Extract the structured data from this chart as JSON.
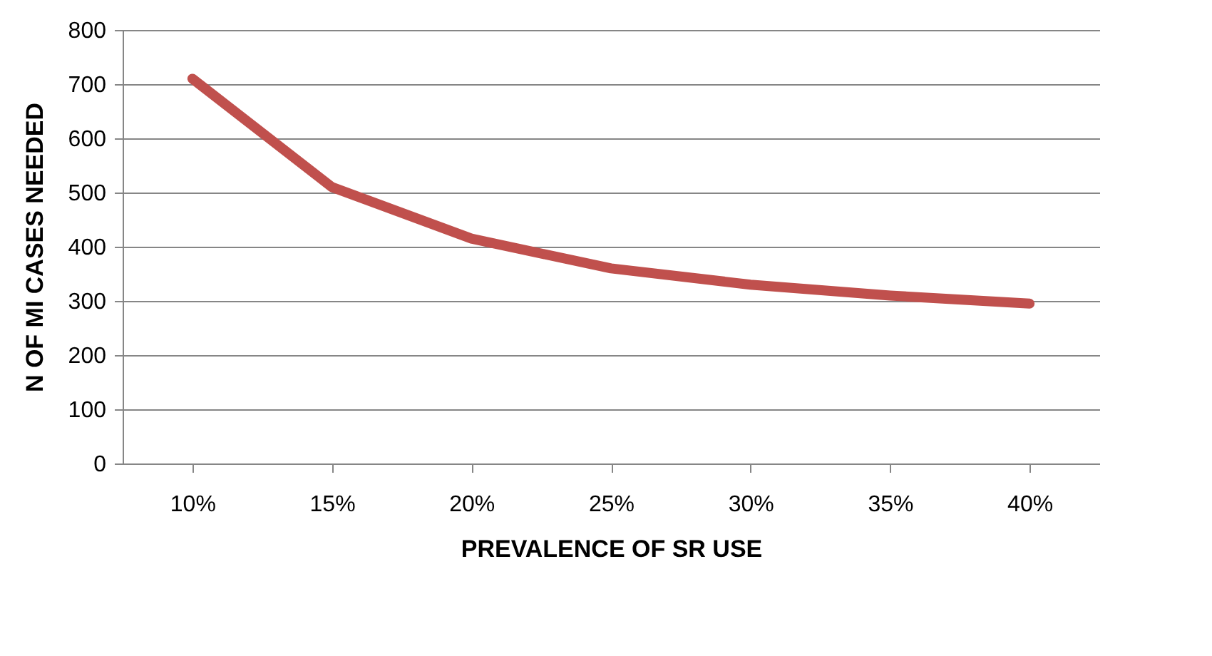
{
  "chart_data": {
    "type": "line",
    "xlabel": "PREVALENCE OF SR USE",
    "ylabel": "N OF MI CASES NEEDED",
    "categories": [
      "10%",
      "15%",
      "20%",
      "25%",
      "30%",
      "35%",
      "40%"
    ],
    "series": [
      {
        "color": "#c0504d",
        "values": [
          710,
          510,
          415,
          360,
          330,
          310,
          295
        ]
      }
    ],
    "ylim": [
      0,
      800
    ],
    "yticks": [
      0,
      100,
      200,
      300,
      400,
      500,
      600,
      700,
      800
    ],
    "grid": "y",
    "marker": "none",
    "line_style": "solid"
  }
}
